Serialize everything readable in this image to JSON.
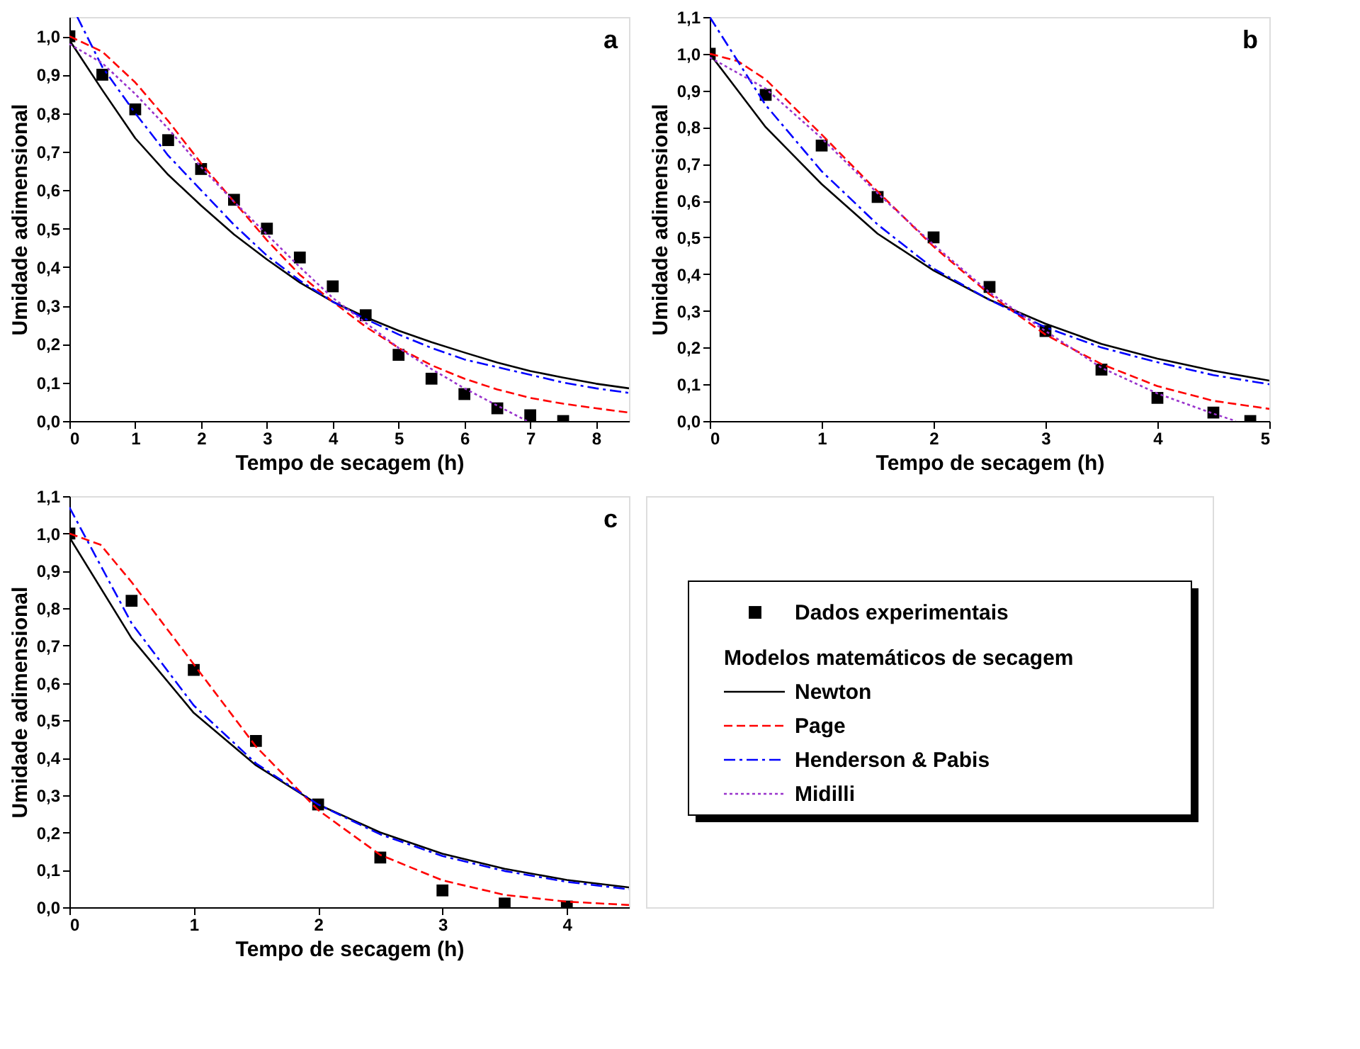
{
  "chart_data": [
    {
      "type": "line",
      "xlabel": "Tempo de secagem (h)",
      "ylabel": "Umidade adimensional",
      "annotations": [
        "a"
      ],
      "xlim": [
        0,
        8.5
      ],
      "ylim": [
        0,
        1.05
      ],
      "xticks": [
        0,
        1,
        2,
        3,
        4,
        5,
        6,
        7,
        8
      ],
      "yticks": [
        {
          "value": 0,
          "label": "0,0"
        },
        {
          "value": 0.1,
          "label": "0,1"
        },
        {
          "value": 0.2,
          "label": "0,2"
        },
        {
          "value": 0.3,
          "label": "0,3"
        },
        {
          "value": 0.4,
          "label": "0,4"
        },
        {
          "value": 0.5,
          "label": "0,5"
        },
        {
          "value": 0.6,
          "label": "0,6"
        },
        {
          "value": 0.7,
          "label": "0,7"
        },
        {
          "value": 0.8,
          "label": "0,8"
        },
        {
          "value": 0.9,
          "label": "0,9"
        },
        {
          "value": 1.0,
          "label": "1,0"
        }
      ],
      "grid": false,
      "legend": "bottom right",
      "series": [
        {
          "name": "Dados experimentais",
          "type": "scatter",
          "marker": "square",
          "color": "#000000",
          "x": [
            0,
            0.5,
            1,
            1.5,
            2,
            2.5,
            3,
            3.5,
            4,
            4.5,
            5,
            5.5,
            6,
            6.5,
            7,
            7.5
          ],
          "values": [
            1.0,
            0.9,
            0.81,
            0.73,
            0.655,
            0.575,
            0.5,
            0.425,
            0.35,
            0.275,
            0.172,
            0.11,
            0.07,
            0.033,
            0.015,
            0.0
          ]
        },
        {
          "name": "Newton",
          "type": "line",
          "line_style": "solid",
          "color": "#000000",
          "x": [
            0,
            0.5,
            1,
            1.5,
            2,
            2.5,
            3,
            3.5,
            4,
            4.5,
            5,
            5.5,
            6,
            6.5,
            7,
            7.5,
            8,
            8.5
          ],
          "values": [
            0.99,
            0.86,
            0.735,
            0.64,
            0.56,
            0.485,
            0.42,
            0.36,
            0.31,
            0.27,
            0.235,
            0.205,
            0.178,
            0.152,
            0.13,
            0.113,
            0.097,
            0.085
          ]
        },
        {
          "name": "Page",
          "type": "line",
          "line_style": "dashed",
          "color": "#ff0000",
          "x": [
            0,
            0.5,
            1,
            1.5,
            2,
            2.5,
            3,
            3.5,
            4,
            4.5,
            5,
            5.5,
            6,
            6.5,
            7,
            7.5,
            8,
            8.5
          ],
          "values": [
            1.0,
            0.96,
            0.88,
            0.78,
            0.67,
            0.57,
            0.47,
            0.38,
            0.31,
            0.245,
            0.19,
            0.145,
            0.11,
            0.082,
            0.06,
            0.045,
            0.033,
            0.022
          ]
        },
        {
          "name": "Henderson & Pabis",
          "type": "line",
          "line_style": "dashdot",
          "color": "#0000ff",
          "x": [
            0.12,
            0.5,
            1,
            1.5,
            2,
            2.5,
            3,
            3.5,
            4,
            4.5,
            5,
            5.5,
            6,
            6.5,
            7,
            7.5,
            8,
            8.5
          ],
          "values": [
            1.05,
            0.92,
            0.8,
            0.69,
            0.6,
            0.51,
            0.43,
            0.365,
            0.31,
            0.265,
            0.225,
            0.19,
            0.16,
            0.14,
            0.12,
            0.1,
            0.085,
            0.073
          ]
        },
        {
          "name": "Midilli",
          "type": "line",
          "line_style": "dotted",
          "color": "#9933cc",
          "x": [
            0,
            0.5,
            1,
            1.5,
            2,
            2.5,
            3,
            3.5,
            4,
            4.5,
            5,
            5.5,
            6,
            6.5,
            6.95
          ],
          "values": [
            0.98,
            0.93,
            0.85,
            0.76,
            0.66,
            0.57,
            0.485,
            0.4,
            0.32,
            0.255,
            0.19,
            0.135,
            0.085,
            0.04,
            0.0
          ]
        }
      ]
    },
    {
      "type": "line",
      "xlabel": "Tempo de secagem (h)",
      "ylabel": "Umidade adimensional",
      "annotations": [
        "b"
      ],
      "xlim": [
        0,
        5
      ],
      "ylim": [
        0,
        1.1
      ],
      "xticks": [
        0,
        1,
        2,
        3,
        4,
        5
      ],
      "yticks": [
        {
          "value": 0,
          "label": "0,0"
        },
        {
          "value": 0.1,
          "label": "0,1"
        },
        {
          "value": 0.2,
          "label": "0,2"
        },
        {
          "value": 0.3,
          "label": "0,3"
        },
        {
          "value": 0.4,
          "label": "0,4"
        },
        {
          "value": 0.5,
          "label": "0,5"
        },
        {
          "value": 0.6,
          "label": "0,6"
        },
        {
          "value": 0.7,
          "label": "0,7"
        },
        {
          "value": 0.8,
          "label": "0,8"
        },
        {
          "value": 0.9,
          "label": "0,9"
        },
        {
          "value": 1.0,
          "label": "1,0"
        },
        {
          "value": 1.1,
          "label": "1,1"
        }
      ],
      "grid": false,
      "legend": "bottom",
      "series": [
        {
          "name": "Dados experimentais",
          "type": "scatter",
          "marker": "square",
          "color": "#000000",
          "x": [
            0,
            0.5,
            1,
            1.5,
            2,
            2.5,
            3,
            3.5,
            4,
            4.5,
            4.83
          ],
          "values": [
            1.0,
            0.888,
            0.75,
            0.61,
            0.5,
            0.365,
            0.245,
            0.14,
            0.063,
            0.023,
            0.0
          ]
        },
        {
          "name": "Newton",
          "type": "line",
          "line_style": "solid",
          "color": "#000000",
          "x": [
            0,
            0.5,
            1,
            1.5,
            2,
            2.5,
            3,
            3.5,
            4,
            4.5,
            5
          ],
          "values": [
            1.0,
            0.8,
            0.645,
            0.51,
            0.41,
            0.33,
            0.265,
            0.21,
            0.17,
            0.137,
            0.11
          ]
        },
        {
          "name": "Page",
          "type": "line",
          "line_style": "dashed",
          "color": "#ff0000",
          "x": [
            0,
            0.25,
            0.5,
            1,
            1.5,
            2,
            2.5,
            3,
            3.5,
            4,
            4.5,
            5
          ],
          "values": [
            1.0,
            0.98,
            0.93,
            0.78,
            0.625,
            0.475,
            0.345,
            0.235,
            0.155,
            0.095,
            0.055,
            0.033
          ]
        },
        {
          "name": "Henderson & Pabis",
          "type": "line",
          "line_style": "dashdot",
          "color": "#0000ff",
          "x": [
            0,
            0.5,
            1,
            1.5,
            2,
            2.5,
            3,
            3.5,
            4,
            4.5,
            5
          ],
          "values": [
            1.1,
            0.86,
            0.68,
            0.535,
            0.415,
            0.33,
            0.255,
            0.2,
            0.16,
            0.125,
            0.1
          ]
        },
        {
          "name": "Midilli",
          "type": "line",
          "line_style": "dotted",
          "color": "#9933cc",
          "x": [
            0,
            0.5,
            1,
            1.5,
            2,
            2.5,
            3,
            3.5,
            4,
            4.5,
            4.7
          ],
          "values": [
            0.99,
            0.905,
            0.77,
            0.62,
            0.48,
            0.35,
            0.245,
            0.145,
            0.075,
            0.02,
            0.0
          ]
        }
      ]
    },
    {
      "type": "line",
      "xlabel": "Tempo de secagem (h)",
      "ylabel": "Umidade adimensional",
      "annotations": [
        "c"
      ],
      "xlim": [
        0,
        4.5
      ],
      "ylim": [
        0,
        1.1
      ],
      "xticks": [
        0,
        1,
        2,
        3,
        4
      ],
      "yticks": [
        {
          "value": 0,
          "label": "0,0"
        },
        {
          "value": 0.1,
          "label": "0,1"
        },
        {
          "value": 0.2,
          "label": "0,2"
        },
        {
          "value": 0.3,
          "label": "0,3"
        },
        {
          "value": 0.4,
          "label": "0,4"
        },
        {
          "value": 0.5,
          "label": "0,5"
        },
        {
          "value": 0.6,
          "label": "0,6"
        },
        {
          "value": 0.7,
          "label": "0,7"
        },
        {
          "value": 0.8,
          "label": "0,8"
        },
        {
          "value": 0.9,
          "label": "0,9"
        },
        {
          "value": 1.0,
          "label": "1,0"
        },
        {
          "value": 1.1,
          "label": "1,1"
        }
      ],
      "grid": false,
      "legend": "right",
      "legend_title": "Modelos matemáticos de secagem",
      "series": [
        {
          "name": "Dados experimentais",
          "type": "scatter",
          "marker": "square",
          "color": "#000000",
          "x": [
            0,
            0.5,
            1,
            1.5,
            2,
            2.5,
            3,
            3.5,
            4
          ],
          "values": [
            1.0,
            0.82,
            0.635,
            0.445,
            0.275,
            0.133,
            0.045,
            0.01,
            0.002
          ]
        },
        {
          "name": "Newton",
          "type": "line",
          "line_style": "solid",
          "color": "#000000",
          "x": [
            0,
            0.5,
            1,
            1.5,
            2,
            2.5,
            3,
            3.5,
            4,
            4.5
          ],
          "values": [
            0.99,
            0.72,
            0.52,
            0.38,
            0.275,
            0.2,
            0.143,
            0.103,
            0.073,
            0.053
          ]
        },
        {
          "name": "Page",
          "type": "line",
          "line_style": "dashed",
          "color": "#ff0000",
          "x": [
            0,
            0.25,
            0.5,
            1,
            1.5,
            2,
            2.5,
            3,
            3.5,
            4,
            4.5
          ],
          "values": [
            1.0,
            0.97,
            0.87,
            0.65,
            0.43,
            0.26,
            0.14,
            0.072,
            0.033,
            0.015,
            0.006
          ]
        },
        {
          "name": "Henderson & Pabis",
          "type": "line",
          "line_style": "dashdot",
          "color": "#0000ff",
          "x": [
            0,
            0.5,
            1,
            1.5,
            2,
            2.5,
            3,
            3.5,
            4,
            4.5
          ],
          "values": [
            1.07,
            0.76,
            0.54,
            0.385,
            0.275,
            0.195,
            0.137,
            0.097,
            0.068,
            0.048
          ]
        }
      ]
    }
  ]
}
